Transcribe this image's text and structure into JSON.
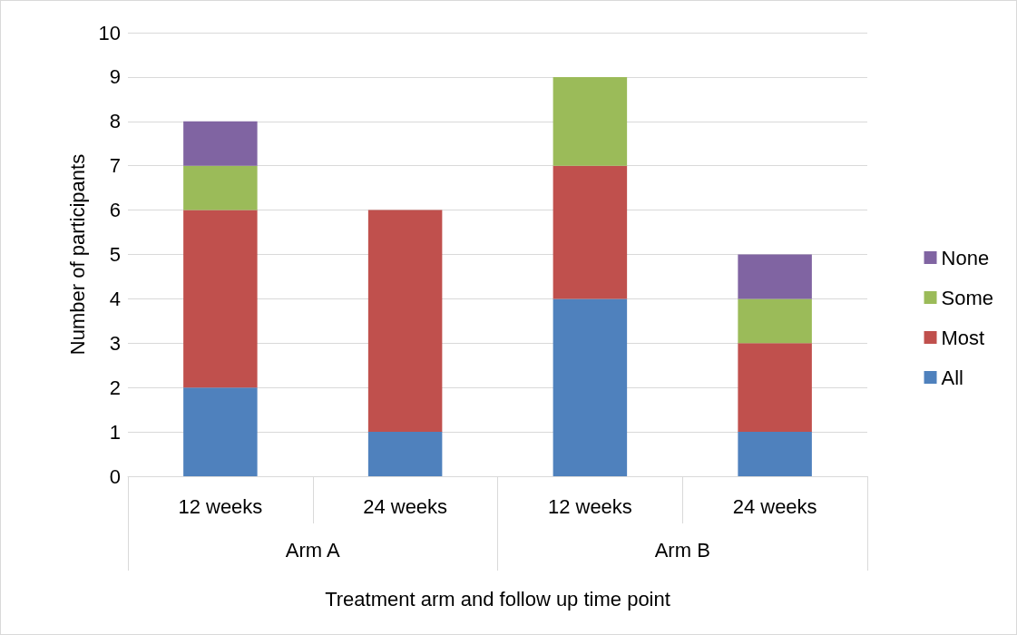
{
  "chart_data": {
    "type": "bar",
    "stacked": true,
    "xlabel": "Treatment arm and follow up time point",
    "ylabel": "Number of participants",
    "categories": [
      "12 weeks",
      "24 weeks",
      "12 weeks",
      "24 weeks"
    ],
    "annotations": [
      "Arm A",
      "Arm B"
    ],
    "series": [
      {
        "name": "All",
        "color": "#4f81bd",
        "values": [
          2,
          1,
          4,
          1
        ]
      },
      {
        "name": "Most",
        "color": "#c0504d",
        "values": [
          4,
          5,
          3,
          2
        ]
      },
      {
        "name": "Some",
        "color": "#9bbb59",
        "values": [
          1,
          0,
          2,
          1
        ]
      },
      {
        "name": "None",
        "color": "#8064a2",
        "values": [
          1,
          0,
          0,
          1
        ]
      }
    ],
    "ylim": [
      0,
      10
    ],
    "yticks": [
      0,
      1,
      2,
      3,
      4,
      5,
      6,
      7,
      8,
      9,
      10
    ],
    "grid": "y",
    "legend": "right"
  }
}
